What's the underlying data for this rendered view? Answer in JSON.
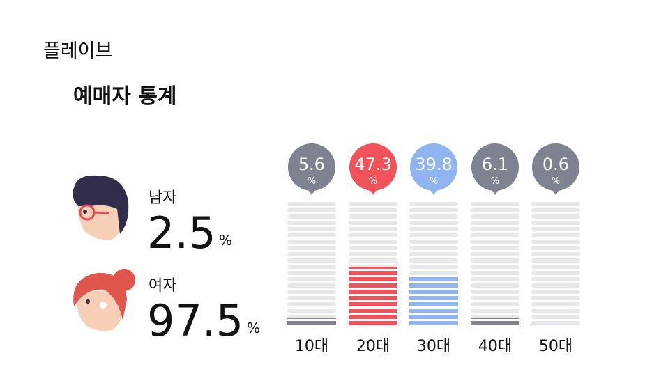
{
  "header": {
    "title": "플레이브"
  },
  "section_title": "예매자 통계",
  "gender": [
    {
      "label": "남자",
      "value": 2.5,
      "unit": "%"
    },
    {
      "label": "여자",
      "value": 97.5,
      "unit": "%"
    }
  ],
  "chart_data": {
    "type": "bar",
    "categories": [
      "10대",
      "20대",
      "30대",
      "40대",
      "50대"
    ],
    "values": [
      5.6,
      47.3,
      39.8,
      6.1,
      0.6
    ],
    "unit": "%",
    "colors": [
      "#7f8290",
      "#f0545a",
      "#8fb4ef",
      "#7f8290",
      "#7f8290"
    ],
    "ylim": [
      0,
      100
    ]
  }
}
